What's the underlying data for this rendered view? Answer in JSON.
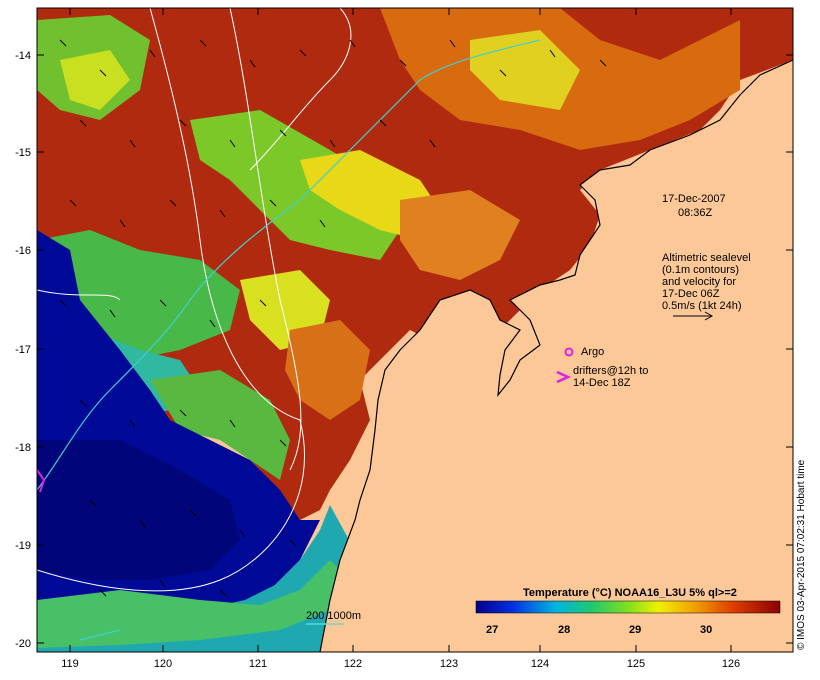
{
  "map": {
    "date_line1": "17-Dec-2007",
    "date_line2": "08:36Z",
    "velocity_note": [
      "Altimetric sealevel",
      "(0.1m contours)",
      "and velocity for",
      "17-Dec 06Z",
      "0.5m/s (1kt 24h)"
    ],
    "argo_label": "Argo",
    "drifter_label": [
      "drifters@12h to",
      "14-Dec 18Z"
    ],
    "scale_label": "200  1000m",
    "credit": "© IMOS 03-Apr-2015 07:02:31 Hobart time",
    "x_ticks": [
      "119",
      "120",
      "121",
      "122",
      "123",
      "124",
      "125",
      "126"
    ],
    "y_ticks": [
      "-14",
      "-15",
      "-16",
      "-17",
      "-18",
      "-19",
      "-20"
    ]
  },
  "colorbar": {
    "title": "Temperature (°C) NOAA16_L3U 5% ql>=2",
    "ticks": [
      "27",
      "28",
      "29",
      "30"
    ]
  },
  "colors": {
    "land": "#fcc898",
    "cold": "#000a96",
    "warm": "#a81010",
    "argo": "#e020e0",
    "contour": "#ffffff",
    "bathy": "#40d0d0"
  }
}
